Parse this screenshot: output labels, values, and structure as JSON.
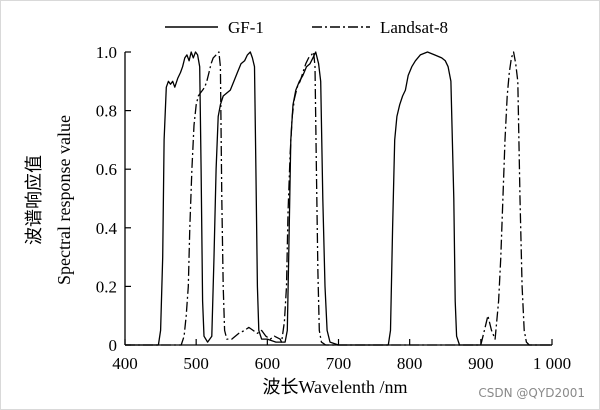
{
  "chart_data": {
    "type": "line",
    "xlabel": "波长Wavelenth /nm",
    "ylabel_cn": "波谱响应值",
    "ylabel_en": "Spectral response value",
    "xlim": [
      400,
      1000
    ],
    "ylim": [
      0,
      1.0
    ],
    "x_ticks": [
      400,
      500,
      600,
      700,
      800,
      900,
      1000
    ],
    "x_tick_labels": [
      "400",
      "500",
      "600",
      "700",
      "800",
      "900",
      "1 000"
    ],
    "y_ticks": [
      0,
      0.2,
      0.4,
      0.6,
      0.8,
      1.0
    ],
    "y_tick_labels": [
      "0",
      "0.2",
      "0.4",
      "0.6",
      "0.8",
      "1.0"
    ],
    "legend_position": "top",
    "series": [
      {
        "name": "GF-1",
        "style": "solid",
        "points": [
          [
            400,
            0
          ],
          [
            447,
            0
          ],
          [
            450,
            0.05
          ],
          [
            453,
            0.3
          ],
          [
            455,
            0.7
          ],
          [
            458,
            0.88
          ],
          [
            461,
            0.9
          ],
          [
            464,
            0.89
          ],
          [
            467,
            0.9
          ],
          [
            470,
            0.88
          ],
          [
            474,
            0.91
          ],
          [
            478,
            0.93
          ],
          [
            481,
            0.95
          ],
          [
            484,
            0.98
          ],
          [
            487,
            0.99
          ],
          [
            490,
            0.97
          ],
          [
            493,
            1.0
          ],
          [
            496,
            0.98
          ],
          [
            499,
            1.0
          ],
          [
            502,
            0.99
          ],
          [
            505,
            0.95
          ],
          [
            507,
            0.6
          ],
          [
            509,
            0.15
          ],
          [
            511,
            0.03
          ],
          [
            516,
            0.01
          ],
          [
            522,
            0.03
          ],
          [
            525,
            0.3
          ],
          [
            528,
            0.6
          ],
          [
            531,
            0.78
          ],
          [
            534,
            0.82
          ],
          [
            538,
            0.85
          ],
          [
            543,
            0.86
          ],
          [
            548,
            0.87
          ],
          [
            553,
            0.9
          ],
          [
            558,
            0.93
          ],
          [
            563,
            0.96
          ],
          [
            568,
            0.97
          ],
          [
            572,
            0.99
          ],
          [
            576,
            1.0
          ],
          [
            579,
            0.98
          ],
          [
            582,
            0.95
          ],
          [
            584,
            0.6
          ],
          [
            586,
            0.2
          ],
          [
            588,
            0.05
          ],
          [
            592,
            0.02
          ],
          [
            600,
            0.02
          ],
          [
            612,
            0.01
          ],
          [
            625,
            0.01
          ],
          [
            628,
            0.05
          ],
          [
            630,
            0.3
          ],
          [
            633,
            0.7
          ],
          [
            636,
            0.82
          ],
          [
            640,
            0.87
          ],
          [
            645,
            0.9
          ],
          [
            650,
            0.92
          ],
          [
            655,
            0.95
          ],
          [
            660,
            0.96
          ],
          [
            664,
            0.98
          ],
          [
            668,
            1.0
          ],
          [
            672,
            0.96
          ],
          [
            675,
            0.9
          ],
          [
            678,
            0.5
          ],
          [
            681,
            0.2
          ],
          [
            684,
            0.05
          ],
          [
            688,
            0.01
          ],
          [
            700,
            0
          ],
          [
            770,
            0
          ],
          [
            773,
            0.05
          ],
          [
            776,
            0.4
          ],
          [
            779,
            0.7
          ],
          [
            782,
            0.78
          ],
          [
            786,
            0.82
          ],
          [
            790,
            0.85
          ],
          [
            794,
            0.87
          ],
          [
            798,
            0.92
          ],
          [
            803,
            0.95
          ],
          [
            808,
            0.97
          ],
          [
            815,
            0.99
          ],
          [
            825,
            1.0
          ],
          [
            835,
            0.99
          ],
          [
            845,
            0.98
          ],
          [
            850,
            0.97
          ],
          [
            854,
            0.95
          ],
          [
            858,
            0.9
          ],
          [
            862,
            0.5
          ],
          [
            864,
            0.15
          ],
          [
            866,
            0.03
          ],
          [
            870,
            0
          ],
          [
            1000,
            0
          ]
        ]
      },
      {
        "name": "Landsat-8",
        "style": "dashdot",
        "points": [
          [
            400,
            0
          ],
          [
            479,
            0
          ],
          [
            483,
            0.03
          ],
          [
            486,
            0.1
          ],
          [
            489,
            0.2
          ],
          [
            491,
            0.4
          ],
          [
            494,
            0.6
          ],
          [
            497,
            0.75
          ],
          [
            500,
            0.82
          ],
          [
            503,
            0.85
          ],
          [
            506,
            0.86
          ],
          [
            509,
            0.87
          ],
          [
            512,
            0.88
          ],
          [
            515,
            0.9
          ],
          [
            518,
            0.93
          ],
          [
            521,
            0.96
          ],
          [
            524,
            0.98
          ],
          [
            528,
            0.99
          ],
          [
            532,
            1.0
          ],
          [
            534,
            0.95
          ],
          [
            536,
            0.5
          ],
          [
            538,
            0.2
          ],
          [
            540,
            0.05
          ],
          [
            543,
            0.02
          ],
          [
            550,
            0.02
          ],
          [
            560,
            0.04
          ],
          [
            568,
            0.05
          ],
          [
            574,
            0.06
          ],
          [
            580,
            0.05
          ],
          [
            586,
            0.04
          ],
          [
            592,
            0.05
          ],
          [
            598,
            0.03
          ],
          [
            604,
            0.02
          ],
          [
            610,
            0.03
          ],
          [
            618,
            0.02
          ],
          [
            620,
            0.01
          ],
          [
            624,
            0.08
          ],
          [
            627,
            0.2
          ],
          [
            629,
            0.45
          ],
          [
            632,
            0.65
          ],
          [
            635,
            0.78
          ],
          [
            638,
            0.84
          ],
          [
            642,
            0.88
          ],
          [
            646,
            0.9
          ],
          [
            650,
            0.93
          ],
          [
            654,
            0.96
          ],
          [
            658,
            0.98
          ],
          [
            662,
            0.99
          ],
          [
            665,
            1.0
          ],
          [
            667,
            0.95
          ],
          [
            669,
            0.6
          ],
          [
            671,
            0.25
          ],
          [
            673,
            0.05
          ],
          [
            676,
            0.01
          ],
          [
            682,
            0
          ],
          [
            700,
            0
          ],
          [
            900,
            0
          ],
          [
            905,
            0.05
          ],
          [
            910,
            0.1
          ],
          [
            915,
            0.05
          ],
          [
            920,
            0.02
          ],
          [
            925,
            0.15
          ],
          [
            928,
            0.3
          ],
          [
            931,
            0.5
          ],
          [
            934,
            0.7
          ],
          [
            937,
            0.85
          ],
          [
            940,
            0.93
          ],
          [
            943,
            0.98
          ],
          [
            946,
            1.0
          ],
          [
            949,
            0.96
          ],
          [
            952,
            0.9
          ],
          [
            955,
            0.5
          ],
          [
            958,
            0.2
          ],
          [
            961,
            0.05
          ],
          [
            964,
            0.01
          ],
          [
            968,
            0
          ],
          [
            1000,
            0
          ]
        ]
      }
    ]
  },
  "watermark": "CSDN @QYD2001"
}
